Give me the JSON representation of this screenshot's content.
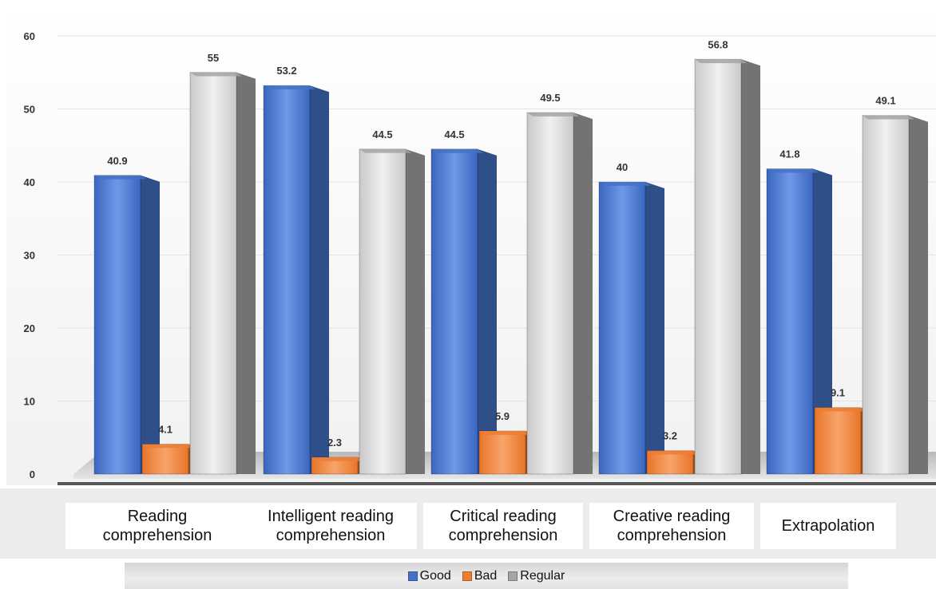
{
  "chart_data": {
    "type": "bar",
    "categories": [
      "Reading\ncomprehension",
      "Intelligent reading\ncomprehension",
      "Critical reading\ncomprehension",
      "Creative reading\ncomprehension",
      "Extrapolation"
    ],
    "series": [
      {
        "name": "Good",
        "color": "#4472c4",
        "values": [
          40.9,
          53.2,
          44.5,
          40,
          41.8
        ],
        "labels": [
          "40.9",
          "53.2",
          "44.5",
          "40",
          "41.8"
        ]
      },
      {
        "name": "Bad",
        "color": "#ed7d31",
        "values": [
          4.1,
          2.3,
          5.9,
          3.2,
          9.1
        ],
        "labels": [
          "4.1",
          "2.3",
          "5.9",
          "3.2",
          "9.1"
        ]
      },
      {
        "name": "Regular",
        "color": "#a5a5a5",
        "values": [
          55,
          44.5,
          49.5,
          56.8,
          49.1
        ],
        "labels": [
          "55",
          "44.5",
          "49.5",
          "56.8",
          "49.1"
        ]
      }
    ],
    "yticks": [
      "0",
      "10",
      "20",
      "30",
      "40",
      "50",
      "60"
    ],
    "ylim": [
      0,
      60
    ],
    "grid": true,
    "legend_position": "bottom"
  }
}
